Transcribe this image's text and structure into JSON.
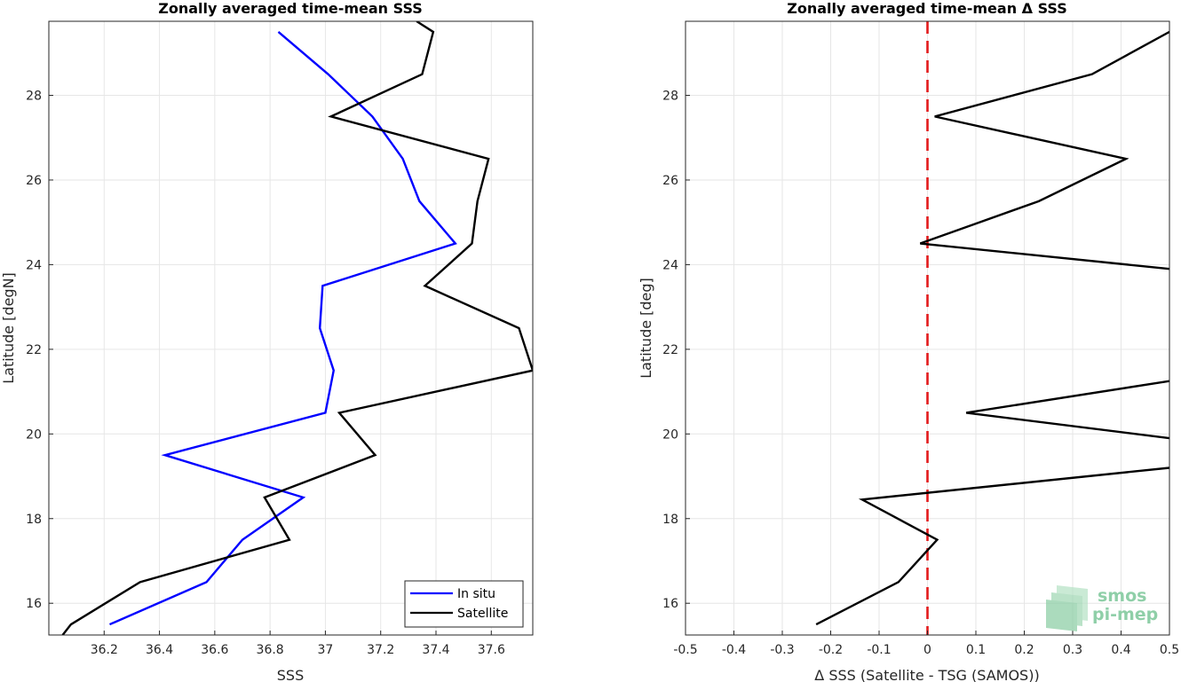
{
  "chart_data": [
    {
      "type": "line",
      "title": "Zonally averaged time-mean SSS",
      "xlabel": "SSS",
      "ylabel": "Latitude [degN]",
      "xlim": [
        36.0,
        37.75
      ],
      "ylim": [
        15.25,
        29.75
      ],
      "xticks": [
        "36.2",
        "36.4",
        "36.6",
        "36.8",
        "37",
        "37.2",
        "37.4",
        "37.6"
      ],
      "yticks": [
        "16",
        "18",
        "20",
        "22",
        "24",
        "26",
        "28"
      ],
      "grid": true,
      "legend_placement": "bottom-right",
      "series": [
        {
          "name": "In situ",
          "color": "#0000ff",
          "x": [
            36.22,
            36.57,
            36.7,
            36.92,
            36.42,
            37.0,
            37.03,
            36.98,
            36.99,
            37.47,
            37.34,
            37.28,
            37.17,
            37.01,
            36.83
          ],
          "y": [
            15.5,
            16.5,
            17.5,
            18.5,
            19.5,
            20.5,
            21.5,
            22.5,
            23.5,
            24.5,
            25.5,
            26.5,
            27.5,
            28.5,
            29.5
          ]
        },
        {
          "name": "Satellite",
          "color": "#000000",
          "x": [
            36.05,
            36.08,
            36.33,
            36.87,
            36.78,
            37.18,
            37.05,
            37.75,
            37.7,
            37.36,
            37.53,
            37.55,
            37.59,
            37.02,
            37.35,
            37.39,
            37.33
          ],
          "y": [
            15.25,
            15.5,
            16.5,
            17.5,
            18.5,
            19.5,
            20.5,
            21.5,
            22.5,
            23.5,
            24.5,
            25.5,
            26.5,
            27.5,
            28.5,
            29.5,
            29.75
          ]
        }
      ]
    },
    {
      "type": "line",
      "title": "Zonally averaged time-mean Δ SSS",
      "xlabel": "Δ SSS (Satellite - TSG (SAMOS))",
      "ylabel": "Latitude [deg]",
      "xlim": [
        -0.5,
        0.5
      ],
      "ylim": [
        15.25,
        29.75
      ],
      "xticks": [
        "-0.5",
        "-0.4",
        "-0.3",
        "-0.2",
        "-0.1",
        "0",
        "0.1",
        "0.2",
        "0.3",
        "0.4",
        "0.5"
      ],
      "yticks": [
        "16",
        "18",
        "20",
        "22",
        "24",
        "26",
        "28"
      ],
      "grid": true,
      "reference_line": {
        "x": 0,
        "color": "#e31a1c",
        "style": "dashed"
      },
      "series": [
        {
          "color": "#000000",
          "x": [
            -0.23,
            -0.06,
            0.02,
            -0.135,
            0.5,
            null,
            0.5,
            0.08,
            0.5,
            null,
            0.5,
            -0.015,
            0.23,
            0.41,
            0.015,
            0.34,
            0.5
          ],
          "y": [
            15.5,
            16.5,
            17.5,
            18.45,
            19.2,
            null,
            19.9,
            20.5,
            21.25,
            null,
            23.9,
            24.5,
            25.5,
            26.5,
            27.5,
            28.5,
            29.5
          ]
        }
      ]
    }
  ],
  "logo": {
    "line1": "smos",
    "line2": "pi-mep",
    "color": "#8fcfa8"
  }
}
